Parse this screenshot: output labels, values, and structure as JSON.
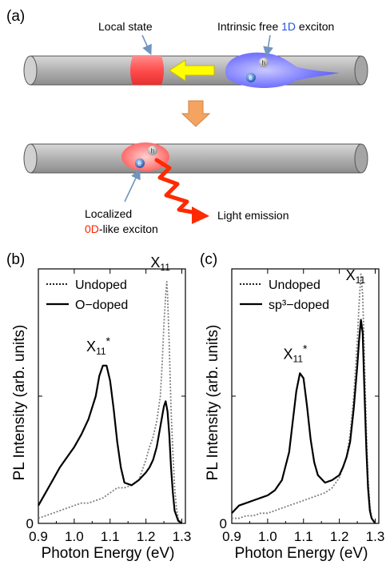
{
  "panel_a": {
    "panel_label": "(a)",
    "local_state_label": "Local state",
    "free_exciton_label_prefix": "Intrinsic free ",
    "free_exciton_label_1d": "1D",
    "free_exciton_label_suffix": " exciton",
    "localized_line1": "Localized",
    "localized_0d": "0D",
    "localized_suffix": "-like exciton",
    "light_emission_label": "Light emission",
    "hole_symbol": "h",
    "electron_symbol": "e",
    "colors": {
      "tube": "#a9a9a9",
      "local_state": "#ff4d4d",
      "arrow_yellow": "#ffff00",
      "arrow_down": "#f4a460",
      "exciton_blue": "#6666ff",
      "emission_red": "#ff2a00",
      "label_1d": "#2255dd",
      "label_0d": "#ff2200"
    }
  },
  "chart_data": [
    {
      "panel_label": "(b)",
      "type": "line",
      "xlabel": "Photon Energy (eV)",
      "ylabel": "PL Intensity (arb. units)",
      "xlim": [
        0.9,
        1.31
      ],
      "ylim": [
        0,
        1.0
      ],
      "x_ticks": [
        "0.9",
        "1.0",
        "1.1",
        "1.2",
        "1.3"
      ],
      "y_ticks": [
        "0"
      ],
      "legend": [
        {
          "name": "Undoped",
          "style": "dotted",
          "color": "#808080"
        },
        {
          "name": "O−doped",
          "style": "solid",
          "color": "#000000"
        }
      ],
      "legend_position": "top-left",
      "annotations": [
        {
          "text_main": "X",
          "text_sub": "11",
          "text_sup": "",
          "x": 1.258
        },
        {
          "text_main": "X",
          "text_sub": "11",
          "text_sup": "*",
          "x": 1.085
        }
      ],
      "series": [
        {
          "name": "Undoped",
          "x": [
            0.9,
            0.92,
            0.94,
            0.96,
            0.98,
            1.0,
            1.02,
            1.04,
            1.06,
            1.08,
            1.1,
            1.12,
            1.14,
            1.16,
            1.18,
            1.2,
            1.21,
            1.22,
            1.23,
            1.24,
            1.245,
            1.25,
            1.255,
            1.258,
            1.26,
            1.265,
            1.27,
            1.275,
            1.28,
            1.285,
            1.29,
            1.3
          ],
          "y": [
            0.02,
            0.03,
            0.04,
            0.05,
            0.06,
            0.07,
            0.08,
            0.08,
            0.09,
            0.1,
            0.12,
            0.14,
            0.14,
            0.15,
            0.17,
            0.25,
            0.3,
            0.34,
            0.4,
            0.5,
            0.62,
            0.78,
            0.9,
            0.95,
            0.9,
            0.7,
            0.45,
            0.28,
            0.14,
            0.06,
            0.02,
            0.0
          ]
        },
        {
          "name": "O−doped",
          "x": [
            0.9,
            0.92,
            0.94,
            0.96,
            0.98,
            1.0,
            1.02,
            1.04,
            1.06,
            1.07,
            1.08,
            1.09,
            1.1,
            1.11,
            1.12,
            1.13,
            1.14,
            1.16,
            1.18,
            1.2,
            1.21,
            1.22,
            1.23,
            1.24,
            1.25,
            1.255,
            1.26,
            1.265,
            1.27,
            1.275,
            1.28,
            1.29,
            1.3
          ],
          "y": [
            0.07,
            0.12,
            0.17,
            0.22,
            0.26,
            0.3,
            0.35,
            0.41,
            0.5,
            0.58,
            0.62,
            0.62,
            0.56,
            0.45,
            0.32,
            0.22,
            0.16,
            0.15,
            0.17,
            0.2,
            0.22,
            0.25,
            0.3,
            0.38,
            0.46,
            0.48,
            0.44,
            0.35,
            0.22,
            0.12,
            0.05,
            0.01,
            0.0
          ]
        }
      ]
    },
    {
      "panel_label": "(c)",
      "type": "line",
      "xlabel": "Photon Energy (eV)",
      "ylabel": "PL Intensity (arb. units)",
      "xlim": [
        0.9,
        1.31
      ],
      "ylim": [
        0,
        1.0
      ],
      "x_ticks": [
        "0.9",
        "1.0",
        "1.1",
        "1.2",
        "1.3"
      ],
      "y_ticks": [
        "0"
      ],
      "legend": [
        {
          "name": "Undoped",
          "style": "dotted",
          "color": "#808080"
        },
        {
          "name": "sp³−doped",
          "style": "solid",
          "color": "#000000"
        }
      ],
      "legend_position": "top-left",
      "annotations": [
        {
          "text_main": "X",
          "text_sub": "11",
          "text_sup": "",
          "x": 1.263
        },
        {
          "text_main": "X",
          "text_sub": "11",
          "text_sup": "*",
          "x": 1.095
        }
      ],
      "series": [
        {
          "name": "Undoped",
          "x": [
            0.9,
            0.92,
            0.94,
            0.96,
            0.98,
            1.0,
            1.02,
            1.04,
            1.06,
            1.08,
            1.1,
            1.12,
            1.14,
            1.16,
            1.18,
            1.2,
            1.21,
            1.22,
            1.23,
            1.24,
            1.25,
            1.255,
            1.26,
            1.265,
            1.27,
            1.275,
            1.28,
            1.285,
            1.29,
            1.3
          ],
          "y": [
            0.02,
            0.02,
            0.03,
            0.03,
            0.04,
            0.04,
            0.05,
            0.06,
            0.07,
            0.08,
            0.09,
            0.1,
            0.11,
            0.12,
            0.14,
            0.18,
            0.22,
            0.26,
            0.35,
            0.5,
            0.72,
            0.86,
            0.98,
            0.9,
            0.65,
            0.38,
            0.18,
            0.07,
            0.02,
            0.0
          ]
        },
        {
          "name": "sp³−doped",
          "x": [
            0.9,
            0.92,
            0.94,
            0.96,
            0.98,
            1.0,
            1.02,
            1.04,
            1.06,
            1.07,
            1.08,
            1.09,
            1.1,
            1.11,
            1.12,
            1.13,
            1.14,
            1.16,
            1.18,
            1.2,
            1.21,
            1.22,
            1.23,
            1.24,
            1.25,
            1.255,
            1.26,
            1.265,
            1.27,
            1.275,
            1.28,
            1.285,
            1.29,
            1.3
          ],
          "y": [
            0.04,
            0.07,
            0.08,
            0.09,
            0.1,
            0.11,
            0.13,
            0.17,
            0.28,
            0.4,
            0.52,
            0.59,
            0.57,
            0.46,
            0.33,
            0.24,
            0.19,
            0.16,
            0.17,
            0.19,
            0.22,
            0.26,
            0.32,
            0.45,
            0.62,
            0.72,
            0.8,
            0.75,
            0.52,
            0.3,
            0.14,
            0.05,
            0.02,
            0.0
          ]
        }
      ]
    }
  ]
}
